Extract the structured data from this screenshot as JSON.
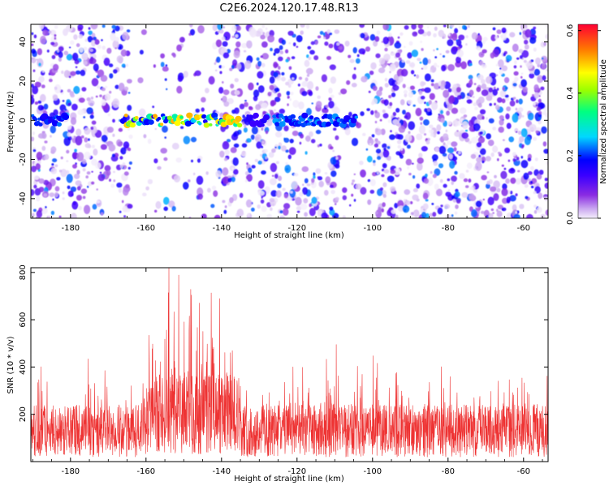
{
  "title": "C2E6.2024.120.17.48.R13",
  "chart_data": [
    {
      "type": "heatmap",
      "xlabel": "Height of straight line (km)",
      "ylabel": "Frequency (Hz)",
      "xlim": [
        -190.5,
        -53.5
      ],
      "ylim": [
        -50,
        49
      ],
      "xticks": [
        -180,
        -160,
        -140,
        -120,
        -100,
        -80,
        -60
      ],
      "yticks": [
        -40,
        -20,
        0,
        20,
        40
      ],
      "colorbar": {
        "label": "Normalized spectral amplitude",
        "range": [
          0.0,
          0.62
        ],
        "ticks": [
          0.0,
          0.2,
          0.4,
          0.6
        ],
        "colormap": [
          "#f4eefb",
          "#c9a6f0",
          "#8a2be2",
          "#3b00ff",
          "#0000ff",
          "#00d8ff",
          "#00ff80",
          "#9aff00",
          "#ffff00",
          "#ff7a00",
          "#ff0033"
        ]
      },
      "signal_band": {
        "frequency_hz": 0,
        "segments": [
          {
            "x_start": -190,
            "x_end": -181,
            "peak": 0.28
          },
          {
            "x_start": -166,
            "x_end": -135,
            "peak": 0.55
          },
          {
            "x_start": -133,
            "x_end": -128,
            "peak": 0.18
          },
          {
            "x_start": -126,
            "x_end": -104,
            "peak": 0.3
          }
        ]
      },
      "grid": false
    },
    {
      "type": "line",
      "xlabel": "Height of straight line (km)",
      "ylabel": "SNR (10 * v/v)",
      "xlim": [
        -190.5,
        -53.5
      ],
      "ylim": [
        0,
        820
      ],
      "xticks": [
        -180,
        -160,
        -140,
        -120,
        -100,
        -80,
        -60
      ],
      "yticks": [
        200,
        400,
        600,
        800
      ],
      "color": "#ee3333",
      "baseline": 130,
      "peaks": [
        {
          "x": -188,
          "y": 460
        },
        {
          "x": -175,
          "y": 430
        },
        {
          "x": -171,
          "y": 350
        },
        {
          "x": -159,
          "y": 430
        },
        {
          "x": -156,
          "y": 500
        },
        {
          "x": -154,
          "y": 640
        },
        {
          "x": -152,
          "y": 825
        },
        {
          "x": -150,
          "y": 740
        },
        {
          "x": -148,
          "y": 690
        },
        {
          "x": -146,
          "y": 620
        },
        {
          "x": -143,
          "y": 770
        },
        {
          "x": -140,
          "y": 590
        },
        {
          "x": -137,
          "y": 430
        },
        {
          "x": -123,
          "y": 390
        },
        {
          "x": -112,
          "y": 460
        },
        {
          "x": -110,
          "y": 440
        },
        {
          "x": -104,
          "y": 570
        },
        {
          "x": -99,
          "y": 320
        },
        {
          "x": -93,
          "y": 360
        },
        {
          "x": -84,
          "y": 320
        },
        {
          "x": -71,
          "y": 280
        },
        {
          "x": -60,
          "y": 300
        }
      ],
      "grid": false
    }
  ]
}
